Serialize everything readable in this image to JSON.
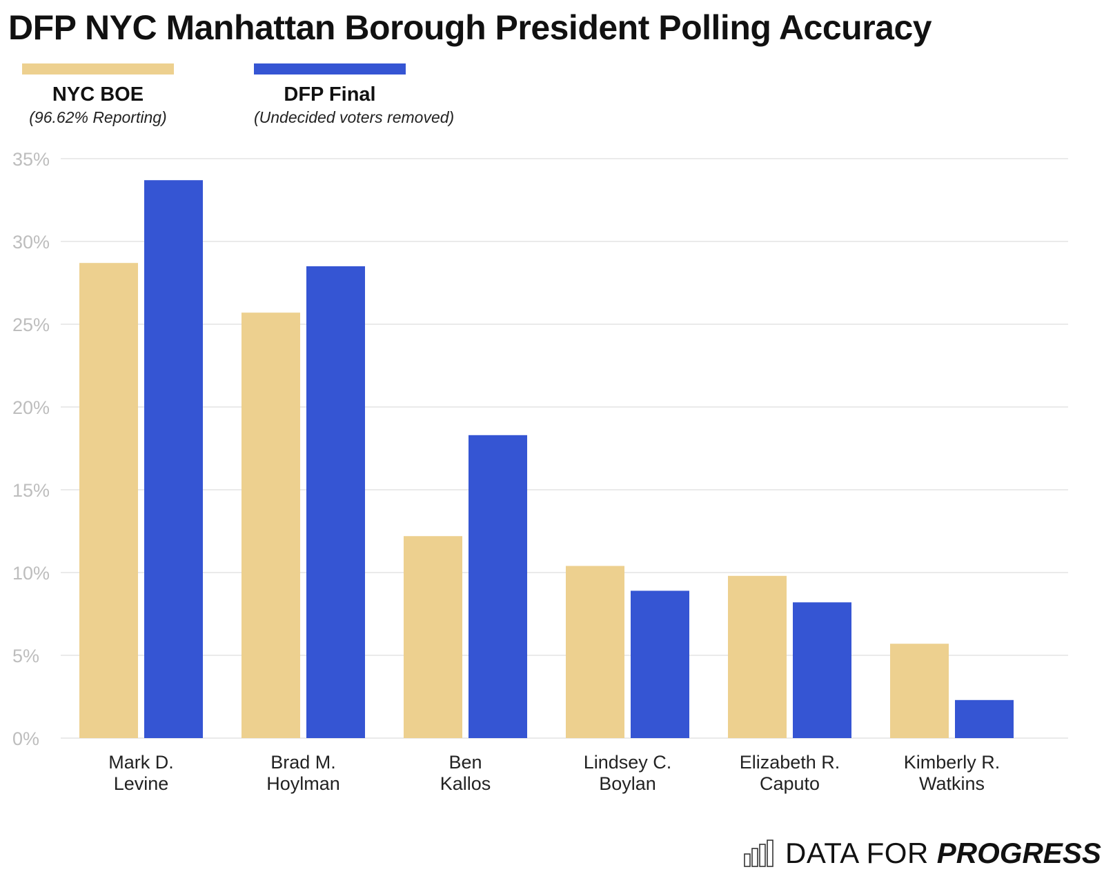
{
  "chart_data": {
    "type": "bar",
    "title": "DFP NYC Manhattan Borough President Polling Accuracy",
    "categories": [
      [
        "Mark D.",
        "Levine"
      ],
      [
        "Brad M.",
        "Hoylman"
      ],
      [
        "Ben",
        "Kallos"
      ],
      [
        "Lindsey C.",
        "Boylan"
      ],
      [
        "Elizabeth R.",
        "Caputo"
      ],
      [
        "Kimberly R.",
        "Watkins"
      ]
    ],
    "series": [
      {
        "name": "NYC BOE",
        "note": "(96.62% Reporting)",
        "color": "#EDD08F",
        "values": [
          28.7,
          25.7,
          12.2,
          10.4,
          9.8,
          5.7
        ]
      },
      {
        "name": "DFP Final",
        "note": "(Undecided voters removed)",
        "color": "#3555D3",
        "values": [
          33.7,
          28.5,
          18.3,
          8.9,
          8.2,
          2.3
        ]
      }
    ],
    "ylim": [
      0,
      35
    ],
    "yticks": [
      0,
      5,
      10,
      15,
      20,
      25,
      30,
      35
    ],
    "ytick_labels": [
      "0%",
      "5%",
      "10%",
      "15%",
      "20%",
      "25%",
      "30%",
      "35%"
    ],
    "xlabel": "",
    "ylabel": "",
    "grid": true,
    "legend_position": "top-left"
  },
  "brand": {
    "light": "DATA FOR",
    "bold": "PROGRESS",
    "icon": "bar-chart-icon"
  },
  "colors": {
    "grid": "#E3E3E3",
    "axis_text": "#BDBDBD",
    "category_text": "#222222"
  }
}
